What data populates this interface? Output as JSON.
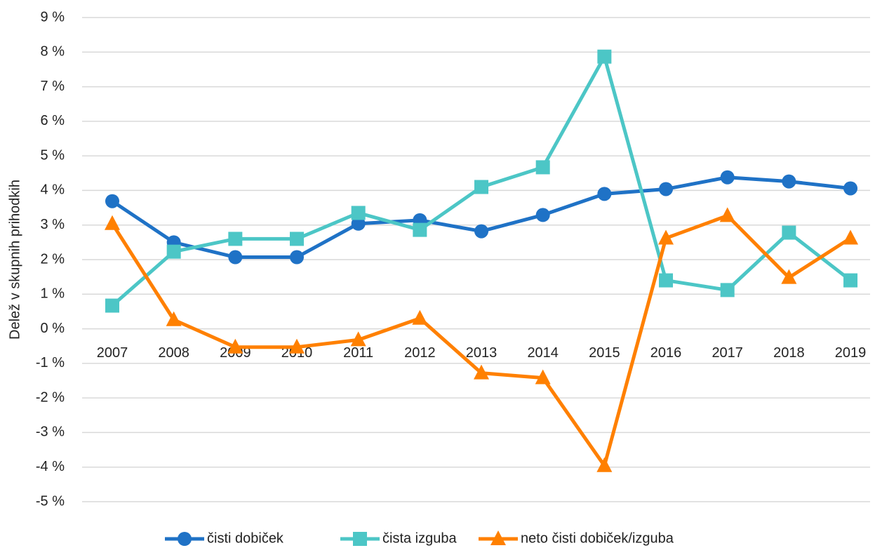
{
  "chart_data": {
    "type": "line",
    "y_label": "Delež v skupnih prihodkih",
    "categories": [
      "2007",
      "2008",
      "2009",
      "2010",
      "2011",
      "2012",
      "2013",
      "2014",
      "2015",
      "2016",
      "2017",
      "2018",
      "2019"
    ],
    "series": [
      {
        "name": "čisti dobiček",
        "color": "#1f72c6",
        "marker": "circle",
        "values": [
          3.69,
          2.5,
          2.07,
          2.07,
          3.04,
          3.14,
          2.82,
          3.29,
          3.9,
          4.04,
          4.38,
          4.26,
          4.06
        ]
      },
      {
        "name": "čista izguba",
        "color": "#4cc6c6",
        "marker": "square",
        "values": [
          0.67,
          2.23,
          2.6,
          2.6,
          3.35,
          2.86,
          4.1,
          4.67,
          7.87,
          1.4,
          1.12,
          2.78,
          1.4
        ]
      },
      {
        "name": "neto čisti dobiček/izguba",
        "color": "#ff8000",
        "marker": "triangle",
        "values": [
          3.04,
          0.26,
          -0.53,
          -0.53,
          -0.32,
          0.3,
          -1.28,
          -1.42,
          -3.96,
          2.62,
          3.27,
          1.48,
          2.62
        ]
      }
    ],
    "ylim": [
      -5,
      9
    ],
    "yticks": [
      {
        "value": -5,
        "label": "-5 %"
      },
      {
        "value": -4,
        "label": "-4 %"
      },
      {
        "value": -3,
        "label": "-3 %"
      },
      {
        "value": -2,
        "label": "-2 %"
      },
      {
        "value": -1,
        "label": "-1 %"
      },
      {
        "value": 0,
        "label": "0 %"
      },
      {
        "value": 1,
        "label": "1 %"
      },
      {
        "value": 2,
        "label": "2 %"
      },
      {
        "value": 3,
        "label": "3 %"
      },
      {
        "value": 4,
        "label": "4 %"
      },
      {
        "value": 5,
        "label": "5 %"
      },
      {
        "value": 6,
        "label": "6 %"
      },
      {
        "value": 7,
        "label": "7 %"
      },
      {
        "value": 8,
        "label": "8 %"
      },
      {
        "value": 9,
        "label": "9 %"
      }
    ],
    "grid": true,
    "legend": "bottom"
  }
}
